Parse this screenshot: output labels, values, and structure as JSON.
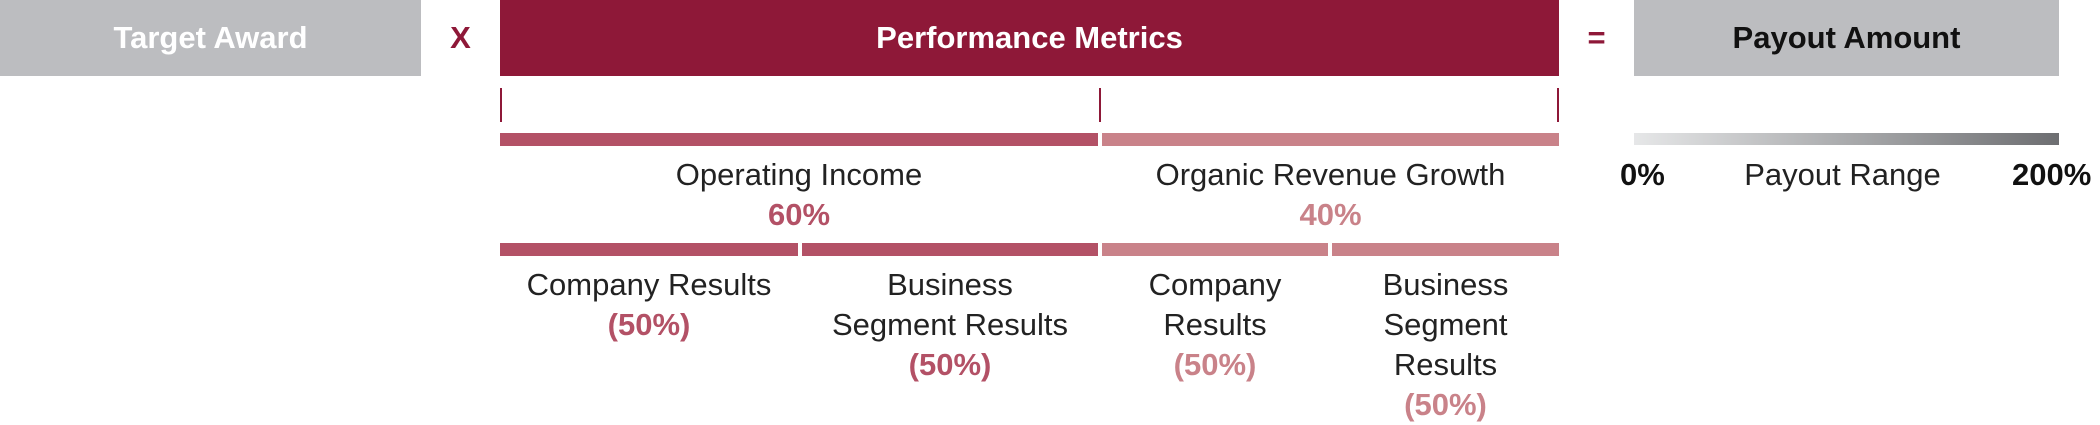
{
  "header": {
    "target_award": "Target Award",
    "multiply": "X",
    "performance_metrics": "Performance Metrics",
    "equals": "=",
    "payout_amount": "Payout Amount"
  },
  "metrics": [
    {
      "name": "Operating Income",
      "weight": "60%",
      "components": [
        {
          "label_lines": [
            "Company Results"
          ],
          "weight": "(50%)"
        },
        {
          "label_lines": [
            "Business",
            "Segment Results"
          ],
          "weight": "(50%)"
        }
      ]
    },
    {
      "name": "Organic Revenue Growth",
      "weight": "40%",
      "components": [
        {
          "label_lines": [
            "Company",
            "Results"
          ],
          "weight": "(50%)"
        },
        {
          "label_lines": [
            "Business",
            "Segment",
            "Results"
          ],
          "weight": "(50%)"
        }
      ]
    }
  ],
  "payout_range": {
    "min": "0%",
    "label": "Payout Range",
    "max": "200%"
  },
  "colors": {
    "brand_red": "#8e1838",
    "metric1": "#b35166",
    "metric2": "#c98289",
    "gray": "#bcbdc0"
  }
}
